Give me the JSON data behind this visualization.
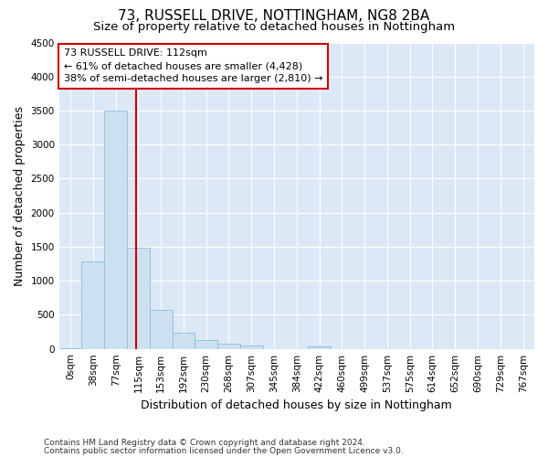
{
  "title": "73, RUSSELL DRIVE, NOTTINGHAM, NG8 2BA",
  "subtitle": "Size of property relative to detached houses in Nottingham",
  "xlabel": "Distribution of detached houses by size in Nottingham",
  "ylabel": "Number of detached properties",
  "categories": [
    "0sqm",
    "38sqm",
    "77sqm",
    "115sqm",
    "153sqm",
    "192sqm",
    "230sqm",
    "268sqm",
    "307sqm",
    "345sqm",
    "384sqm",
    "422sqm",
    "460sqm",
    "499sqm",
    "537sqm",
    "575sqm",
    "614sqm",
    "652sqm",
    "690sqm",
    "729sqm",
    "767sqm"
  ],
  "bar_heights": [
    5,
    1280,
    3500,
    1480,
    570,
    240,
    130,
    80,
    55,
    0,
    0,
    30,
    0,
    0,
    0,
    0,
    0,
    0,
    0,
    0,
    0
  ],
  "bar_color": "#cce0f0",
  "bar_edge_color": "#8bbdd9",
  "ylim": [
    0,
    4500
  ],
  "yticks": [
    0,
    500,
    1000,
    1500,
    2000,
    2500,
    3000,
    3500,
    4000,
    4500
  ],
  "annotation_title": "73 RUSSELL DRIVE: 112sqm",
  "annotation_line1": "← 61% of detached houses are smaller (4,428)",
  "annotation_line2": "38% of semi-detached houses are larger (2,810) →",
  "annotation_box_color": "#ffffff",
  "annotation_box_edge": "#cc0000",
  "vline_color": "#cc0000",
  "vline_x_index": 2.92,
  "footnote1": "Contains HM Land Registry data © Crown copyright and database right 2024.",
  "footnote2": "Contains public sector information licensed under the Open Government Licence v3.0.",
  "fig_background": "#ffffff",
  "plot_background": "#dce8f5",
  "grid_color": "#ffffff",
  "title_fontsize": 11,
  "subtitle_fontsize": 9.5,
  "axis_label_fontsize": 9,
  "tick_fontsize": 7.5,
  "footnote_fontsize": 6.5
}
